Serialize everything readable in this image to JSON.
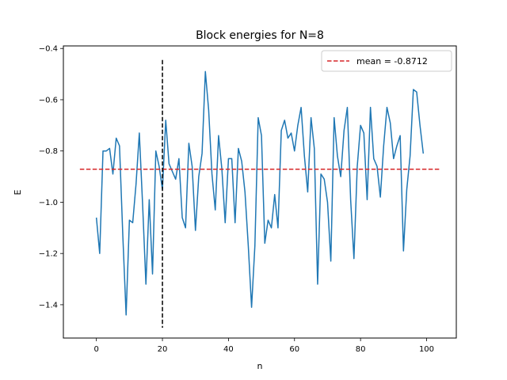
{
  "chart_data": {
    "type": "line",
    "title": "Block energies for N=8",
    "xlabel": "n",
    "ylabel": "E",
    "xlim": [
      -10,
      109
    ],
    "ylim": [
      -1.53,
      -0.39
    ],
    "xticks": [
      0,
      20,
      40,
      60,
      80,
      100
    ],
    "yticks": [
      -1.4,
      -1.2,
      -1.0,
      -0.8,
      -0.6,
      -0.4
    ],
    "grid": false,
    "legend_position": "top-right",
    "series": [
      {
        "color": "#1f77b4",
        "x": [
          0,
          1,
          2,
          3,
          4,
          5,
          6,
          7,
          8,
          9,
          10,
          11,
          12,
          13,
          14,
          15,
          16,
          17,
          18,
          19,
          20,
          21,
          22,
          23,
          24,
          25,
          26,
          27,
          28,
          29,
          30,
          31,
          32,
          33,
          34,
          35,
          36,
          37,
          38,
          39,
          40,
          41,
          42,
          43,
          44,
          45,
          46,
          47,
          48,
          49,
          50,
          51,
          52,
          53,
          54,
          55,
          56,
          57,
          58,
          59,
          60,
          61,
          62,
          63,
          64,
          65,
          66,
          67,
          68,
          69,
          70,
          71,
          72,
          73,
          74,
          75,
          76,
          77,
          78,
          79,
          80,
          81,
          82,
          83,
          84,
          85,
          86,
          87,
          88,
          89,
          90,
          91,
          92,
          93,
          94,
          95,
          96,
          97,
          98,
          99
        ],
        "y": [
          -1.06,
          -1.2,
          -0.8,
          -0.8,
          -0.79,
          -0.89,
          -0.75,
          -0.78,
          -1.13,
          -1.44,
          -1.07,
          -1.08,
          -0.93,
          -0.73,
          -1.01,
          -1.32,
          -0.99,
          -1.28,
          -0.8,
          -0.86,
          -0.95,
          -0.68,
          -0.85,
          -0.88,
          -0.91,
          -0.83,
          -1.06,
          -1.1,
          -0.77,
          -0.86,
          -1.11,
          -0.9,
          -0.81,
          -0.49,
          -0.64,
          -0.89,
          -1.03,
          -0.74,
          -0.87,
          -1.08,
          -0.83,
          -0.83,
          -1.08,
          -0.79,
          -0.84,
          -0.96,
          -1.17,
          -1.41,
          -1.17,
          -0.67,
          -0.74,
          -1.16,
          -1.07,
          -1.1,
          -0.97,
          -1.1,
          -0.72,
          -0.68,
          -0.75,
          -0.73,
          -0.8,
          -0.7,
          -0.63,
          -0.82,
          -0.96,
          -0.67,
          -0.79,
          -1.32,
          -0.89,
          -0.91,
          -1.0,
          -1.23,
          -0.67,
          -0.82,
          -0.9,
          -0.72,
          -0.63,
          -0.99,
          -1.22,
          -0.86,
          -0.7,
          -0.73,
          -0.99,
          -0.63,
          -0.83,
          -0.86,
          -0.98,
          -0.78,
          -0.63,
          -0.69,
          -0.83,
          -0.78,
          -0.74,
          -1.19,
          -0.95,
          -0.82,
          -0.56,
          -0.57,
          -0.7,
          -0.81
        ]
      }
    ],
    "mean_line": {
      "label": "mean = -0.8712",
      "value": -0.8712,
      "x_range": [
        -5,
        104
      ],
      "color": "#d62728",
      "style": "dashed"
    },
    "vertical_marker": {
      "x": 20,
      "y_range": [
        -1.49,
        -0.445
      ],
      "color": "#000000",
      "style": "dashed"
    }
  }
}
